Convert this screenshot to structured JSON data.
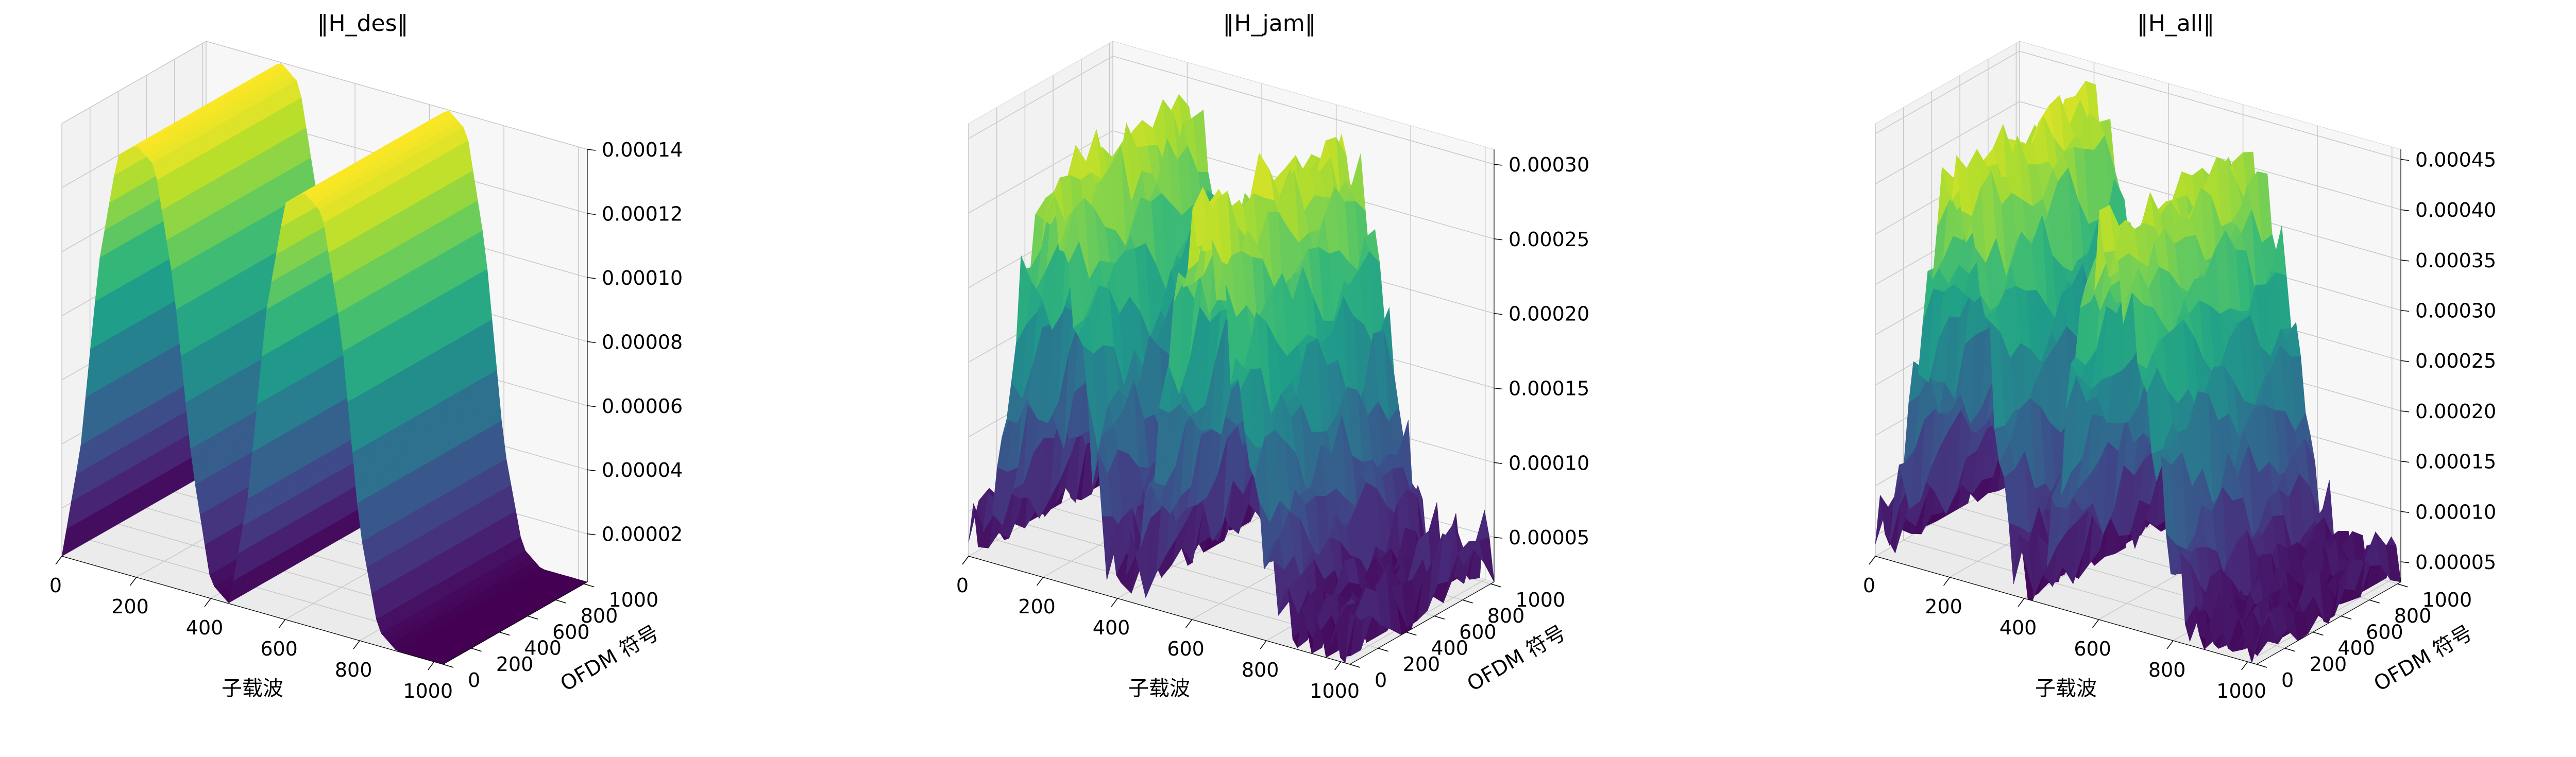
{
  "chart_data": [
    {
      "type": "surface",
      "title": "‖H_des‖",
      "xlabel": "子载波",
      "ylabel": "OFDM 符号",
      "zlabel": "",
      "x_ticks": [
        "0",
        "200",
        "400",
        "600",
        "800",
        "1000"
      ],
      "y_ticks": [
        "0",
        "200",
        "400",
        "600",
        "800",
        "1000"
      ],
      "z_ticks": [
        "0.00002",
        "0.00004",
        "0.00006",
        "0.00008",
        "0.00010",
        "0.00012",
        "0.00014"
      ],
      "xlim": [
        0,
        1024
      ],
      "ylim": [
        0,
        1024
      ],
      "zlim": [
        5e-06,
        0.00014
      ],
      "colormap": "viridis",
      "grid": true,
      "profile_x": [
        0,
        50,
        100,
        150,
        200,
        250,
        300,
        350,
        400,
        450,
        500,
        550,
        600,
        650,
        700,
        750,
        800,
        850,
        900,
        950,
        1000
      ],
      "profile_z": [
        5e-06,
        4e-05,
        0.0001,
        0.000135,
        0.00014,
        0.000135,
        0.0001,
        4.5e-05,
        1e-05,
        5e-06,
        4e-05,
        0.0001,
        0.000135,
        0.00014,
        0.000135,
        0.0001,
        4e-05,
        1e-05,
        5e-06,
        5e-06,
        5e-06
      ],
      "noise": 0
    },
    {
      "type": "surface",
      "title": "‖H_jam‖",
      "xlabel": "子载波",
      "ylabel": "OFDM 符号",
      "zlabel": "",
      "x_ticks": [
        "0",
        "200",
        "400",
        "600",
        "800",
        "1000"
      ],
      "y_ticks": [
        "0",
        "200",
        "400",
        "600",
        "800",
        "1000"
      ],
      "z_ticks": [
        "0.00005",
        "0.00010",
        "0.00015",
        "0.00020",
        "0.00025",
        "0.00030"
      ],
      "xlim": [
        0,
        1024
      ],
      "ylim": [
        0,
        1024
      ],
      "zlim": [
        2e-05,
        0.00031
      ],
      "colormap": "viridis",
      "grid": true,
      "profile_x": [
        0,
        50,
        100,
        150,
        200,
        250,
        300,
        350,
        400,
        450,
        500,
        550,
        600,
        650,
        700,
        750,
        800,
        850,
        900,
        950,
        1000
      ],
      "profile_z": [
        3e-05,
        5e-05,
        0.00012,
        0.00022,
        0.00028,
        0.00026,
        0.00018,
        8e-05,
        3e-05,
        5e-05,
        0.00012,
        0.00022,
        0.00028,
        0.00027,
        0.00022,
        0.00015,
        8e-05,
        4e-05,
        3e-05,
        3e-05,
        4e-05
      ],
      "noise": 3.5e-05
    },
    {
      "type": "surface",
      "title": "‖H_all‖",
      "xlabel": "子载波",
      "ylabel": "OFDM 符号",
      "zlabel": "",
      "x_ticks": [
        "0",
        "200",
        "400",
        "600",
        "800",
        "1000"
      ],
      "y_ticks": [
        "0",
        "200",
        "400",
        "600",
        "800",
        "1000"
      ],
      "z_ticks": [
        "0.00005",
        "0.00010",
        "0.00015",
        "0.00020",
        "0.00025",
        "0.00030",
        "0.00035",
        "0.00040",
        "0.00045"
      ],
      "xlim": [
        0,
        1024
      ],
      "ylim": [
        0,
        1024
      ],
      "zlim": [
        3e-05,
        0.00046
      ],
      "colormap": "viridis",
      "grid": true,
      "profile_x": [
        0,
        50,
        100,
        150,
        200,
        250,
        300,
        350,
        400,
        450,
        500,
        550,
        600,
        650,
        700,
        750,
        800,
        850,
        900,
        950,
        1000
      ],
      "profile_z": [
        4e-05,
        8e-05,
        0.0002,
        0.00035,
        0.00042,
        0.0004,
        0.00028,
        0.00012,
        4e-05,
        6e-05,
        0.00018,
        0.00033,
        0.0004,
        0.00039,
        0.00032,
        0.00022,
        0.0001,
        5e-05,
        4e-05,
        4e-05,
        5e-05
      ],
      "noise": 4.5e-05
    }
  ]
}
